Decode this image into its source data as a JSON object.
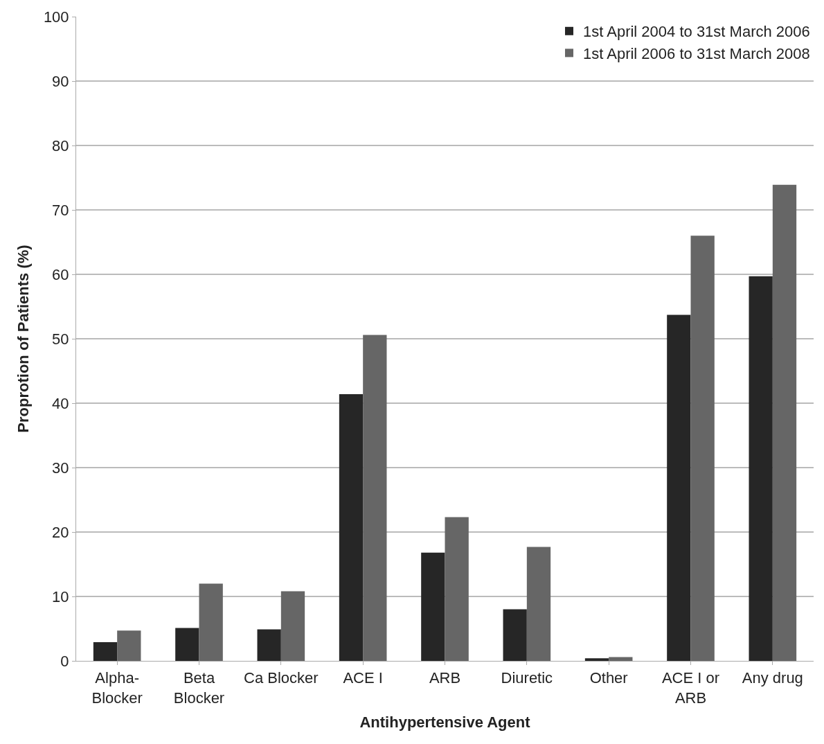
{
  "chart_data": {
    "type": "bar",
    "xlabel": "Antihypertensive Agent",
    "ylabel": "Proprotion of Patients (%)",
    "categories": [
      "Alpha-\nBlocker",
      "Beta\nBlocker",
      "Ca Blocker",
      "ACE I",
      "ARB",
      "Diuretic",
      "Other",
      "ACE I or\nARB",
      "Any drug"
    ],
    "series": [
      {
        "name": "1st April 2004 to 31st March 2006",
        "color": "#262626",
        "values": [
          2.9,
          5.1,
          4.9,
          41.4,
          16.8,
          8.0,
          0.4,
          53.7,
          59.7
        ]
      },
      {
        "name": "1st April 2006 to 31st March 2008",
        "color": "#666666",
        "values": [
          4.7,
          12.0,
          10.8,
          50.6,
          22.3,
          17.7,
          0.6,
          66.0,
          73.9
        ]
      }
    ],
    "ylim": [
      0,
      100
    ],
    "yticks": [
      0,
      10,
      20,
      30,
      40,
      50,
      60,
      70,
      80,
      90,
      100
    ],
    "grid": "y",
    "legend": "top right"
  }
}
